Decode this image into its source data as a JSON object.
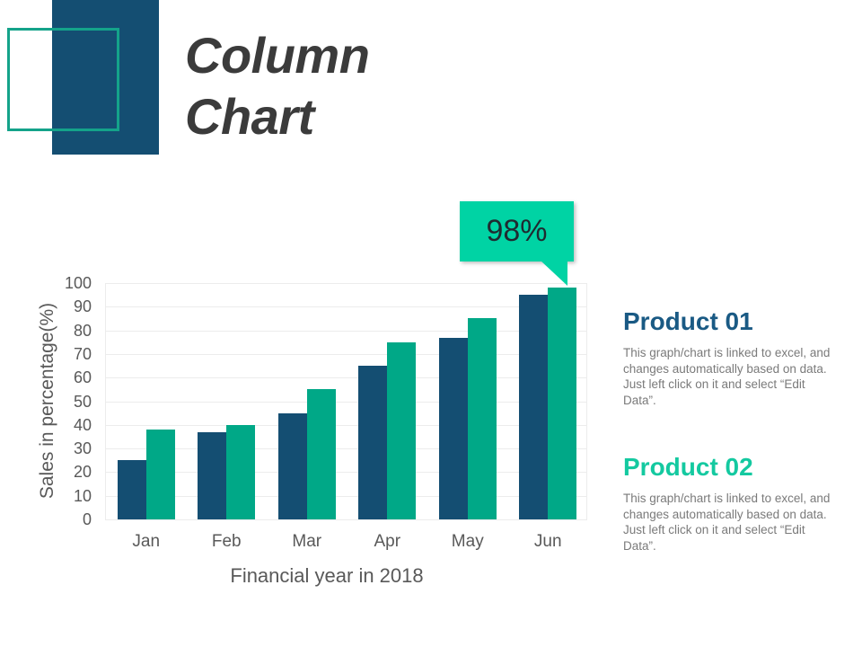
{
  "header": {
    "title_line1": "Column",
    "title_line2": "Chart"
  },
  "callout": {
    "label": "98%",
    "color": "#00d3a4"
  },
  "colors": {
    "product01": "#144e72",
    "product02": "#00a887",
    "product01_title": "#1a5a84",
    "product02_title": "#14c9a0"
  },
  "legend": {
    "product01": {
      "title": "Product 01",
      "description": "This graph/chart is linked to excel, and changes automatically based on data. Just left click on it and select “Edit Data”."
    },
    "product02": {
      "title": "Product 02",
      "description": "This graph/chart is linked to excel, and changes automatically based on data. Just left click on it and select “Edit Data”."
    }
  },
  "axes": {
    "xlabel": "Financial year in 2018",
    "ylabel": "Sales in percentage(%)",
    "yticks": [
      "0",
      "10",
      "20",
      "30",
      "40",
      "50",
      "60",
      "70",
      "80",
      "90",
      "100"
    ],
    "xticks": [
      "Jan",
      "Feb",
      "Mar",
      "Apr",
      "May",
      "Jun"
    ]
  },
  "chart_data": {
    "type": "bar",
    "title": "Column Chart",
    "categories": [
      "Jan",
      "Feb",
      "Mar",
      "Apr",
      "May",
      "Jun"
    ],
    "series": [
      {
        "name": "Product 01",
        "color": "#144e72",
        "values": [
          25,
          37,
          45,
          65,
          77,
          95
        ]
      },
      {
        "name": "Product 02",
        "color": "#00a887",
        "values": [
          38,
          40,
          55,
          75,
          85,
          98
        ]
      }
    ],
    "xlabel": "Financial year in 2018",
    "ylabel": "Sales in percentage(%)",
    "ylim": [
      0,
      100
    ],
    "ytick_step": 10,
    "grid": true,
    "legend_position": "right",
    "annotations": [
      {
        "category": "Jun",
        "series": "Product 02",
        "text": "98%"
      }
    ]
  }
}
